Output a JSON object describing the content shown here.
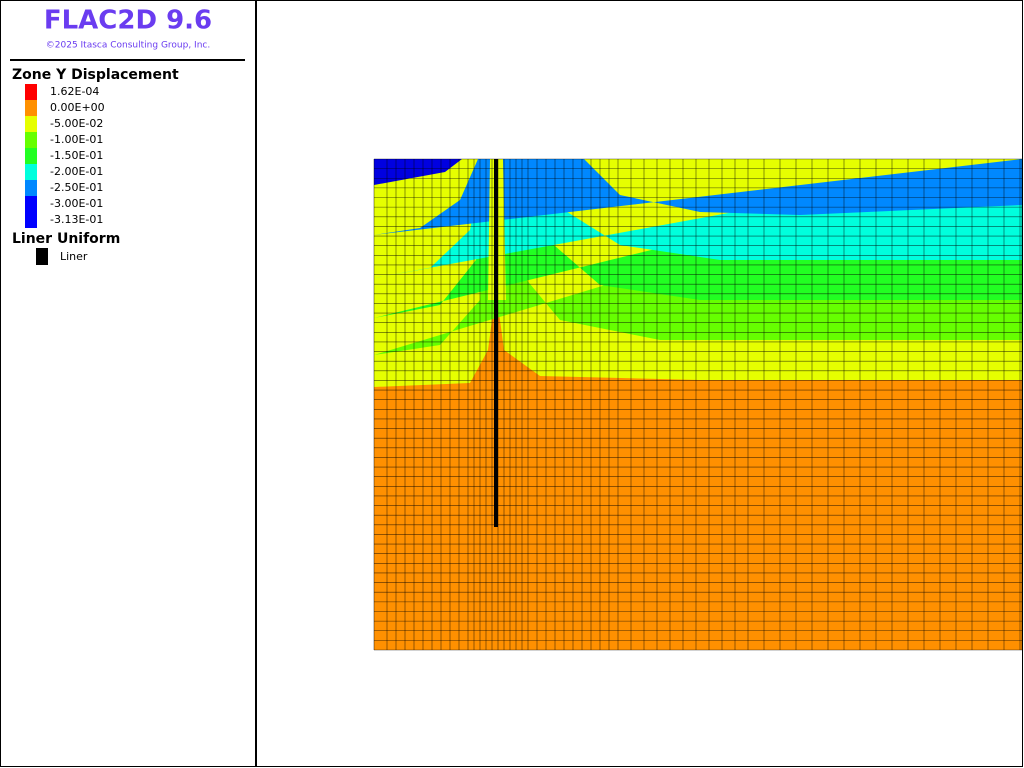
{
  "header": {
    "title": "FLAC2D 9.6",
    "copyright": "©2025 Itasca Consulting Group, Inc."
  },
  "legend": {
    "title": "Zone Y Displacement",
    "items": [
      {
        "label": "1.62E-04",
        "color": "#ff0000"
      },
      {
        "label": "0.00E+00",
        "color": "#ff9000"
      },
      {
        "label": "-5.00E-02",
        "color": "#e6ff00"
      },
      {
        "label": "-1.00E-01",
        "color": "#66ff00"
      },
      {
        "label": "-1.50E-01",
        "color": "#22ff22"
      },
      {
        "label": "-2.00E-01",
        "color": "#00ffdd"
      },
      {
        "label": "-2.50E-01",
        "color": "#0088ff"
      },
      {
        "label": "-3.00E-01",
        "color": "#0000ff"
      },
      {
        "label": "-3.13E-01",
        "color": "#0000ff"
      }
    ]
  },
  "liner_legend": {
    "title": "Liner Uniform",
    "items": [
      {
        "label": "Liner",
        "color": "#000000"
      }
    ]
  }
}
